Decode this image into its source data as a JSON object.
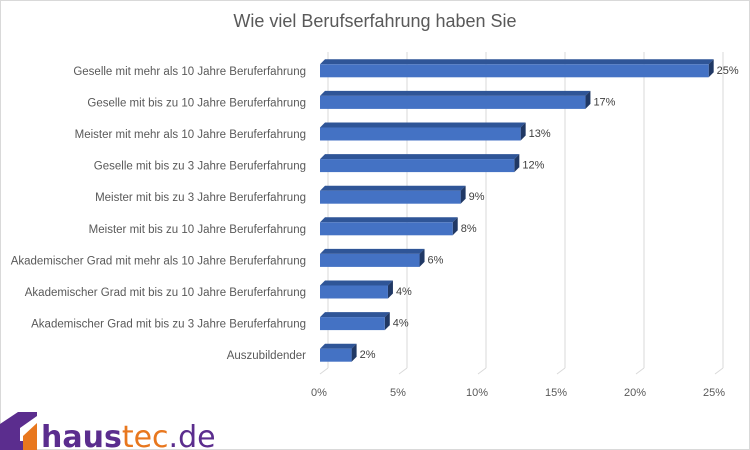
{
  "chart_data": {
    "type": "bar",
    "orientation": "horizontal",
    "title": "Wie viel Berufserfahrung haben Sie",
    "xlabel": "",
    "ylabel": "",
    "xlim": [
      0,
      25
    ],
    "x_ticks": [
      "0%",
      "5%",
      "10%",
      "15%",
      "20%",
      "25%"
    ],
    "x_tick_values": [
      0,
      5,
      10,
      15,
      20,
      25
    ],
    "grid": true,
    "legend": "none",
    "categories": [
      "Geselle mit mehr als 10 Jahre Beruferfahrung",
      "Geselle mit bis zu 10 Jahre Beruferfahrung",
      "Meister mit mehr als 10 Jahre Beruferfahrung",
      "Geselle mit bis zu 3 Jahre Beruferfahrung",
      "Meister mit bis zu 3 Jahre Beruferfahrung",
      "Meister mit bis zu 10 Jahre Beruferfahrung",
      "Akademischer Grad mit mehr als 10 Jahre Beruferfahrung",
      "Akademischer Grad mit bis zu 10 Jahre Beruferfahrung",
      "Akademischer Grad mit bis zu 3 Jahre Beruferfahrung",
      "Auszubildender"
    ],
    "values": [
      24.6,
      16.8,
      12.7,
      12.3,
      8.9,
      8.4,
      6.3,
      4.3,
      4.1,
      2.0
    ],
    "data_labels": [
      "25%",
      "17%",
      "13%",
      "12%",
      "9%",
      "8%",
      "6%",
      "4%",
      "4%",
      "2%"
    ],
    "colors": {
      "bar_front": "#4472c4",
      "bar_top": "#2f5597",
      "bar_side": "#203864"
    }
  },
  "logo": {
    "part1": "haus",
    "part2": "tec",
    "part3": ".de",
    "color_primary": "#5b2d8e",
    "color_accent": "#e8771e"
  }
}
